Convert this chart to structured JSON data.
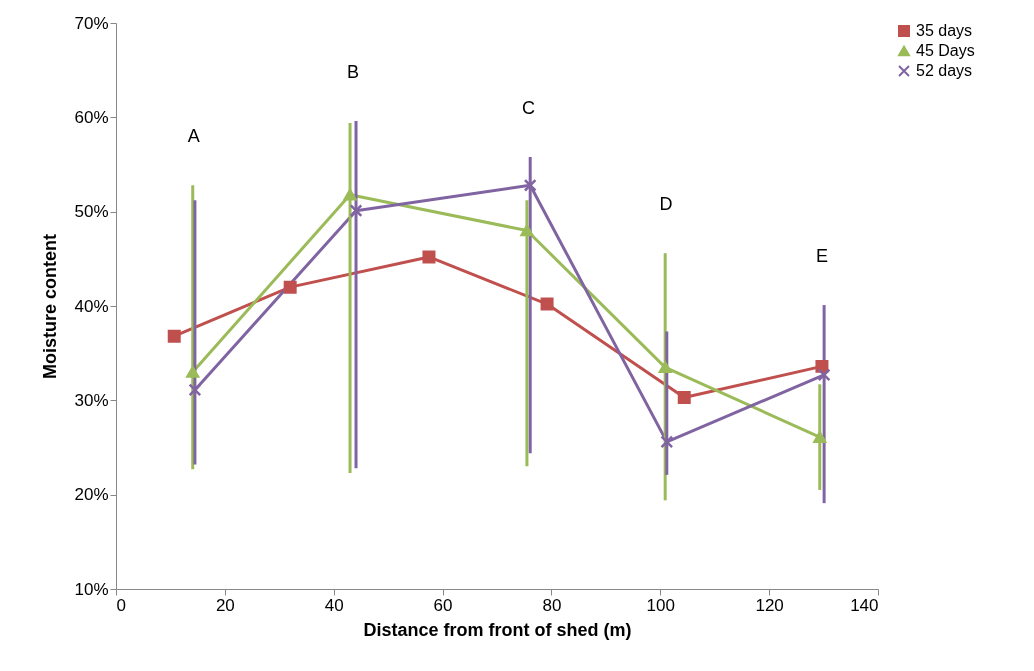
{
  "chart_data": {
    "type": "line",
    "xlabel": "Distance from front of shed (m)",
    "ylabel": "Moisture content",
    "xlim": [
      0,
      140
    ],
    "xticks": [
      0,
      20,
      40,
      60,
      80,
      100,
      120,
      140
    ],
    "ylim": [
      10,
      70
    ],
    "yticks": [
      {
        "value": 10,
        "label": "10%"
      },
      {
        "value": 20,
        "label": "20%"
      },
      {
        "value": 30,
        "label": "30%"
      },
      {
        "value": 40,
        "label": "40%"
      },
      {
        "value": 50,
        "label": "50%"
      },
      {
        "value": 60,
        "label": "60%"
      },
      {
        "value": 70,
        "label": "70%"
      }
    ],
    "grid": false,
    "legend": "right",
    "line_style": "solid",
    "series": [
      {
        "name": "35 days",
        "color": "#c0504d",
        "marker": "square",
        "x": [
          10.7,
          32.0,
          57.5,
          79.2,
          104.4,
          129.7
        ],
        "values": [
          36.8,
          42.0,
          45.2,
          40.2,
          30.3,
          33.6
        ]
      },
      {
        "name": "45 Days",
        "color": "#9bbb59",
        "marker": "triangle",
        "x": [
          14.1,
          43.0,
          75.5,
          100.9,
          129.3
        ],
        "values": [
          33.0,
          51.8,
          48.0,
          33.5,
          26.1
        ],
        "errors": [
          [
            22.7,
            52.8
          ],
          [
            22.3,
            59.4
          ],
          [
            23.0,
            51.2
          ],
          [
            19.4,
            45.6
          ],
          [
            20.5,
            31.7
          ]
        ]
      },
      {
        "name": "52 days",
        "color": "#8064a2",
        "marker": "cross",
        "x": [
          14.5,
          44.1,
          76.1,
          101.2,
          130.1
        ],
        "values": [
          31.1,
          50.1,
          52.8,
          25.6,
          32.7
        ],
        "errors": [
          [
            23.2,
            51.2
          ],
          [
            22.8,
            59.6
          ],
          [
            24.4,
            55.8
          ],
          [
            22.1,
            37.3
          ],
          [
            19.1,
            40.1
          ]
        ]
      }
    ],
    "annotations": [
      "A",
      "B",
      "C",
      "D",
      "E"
    ]
  }
}
